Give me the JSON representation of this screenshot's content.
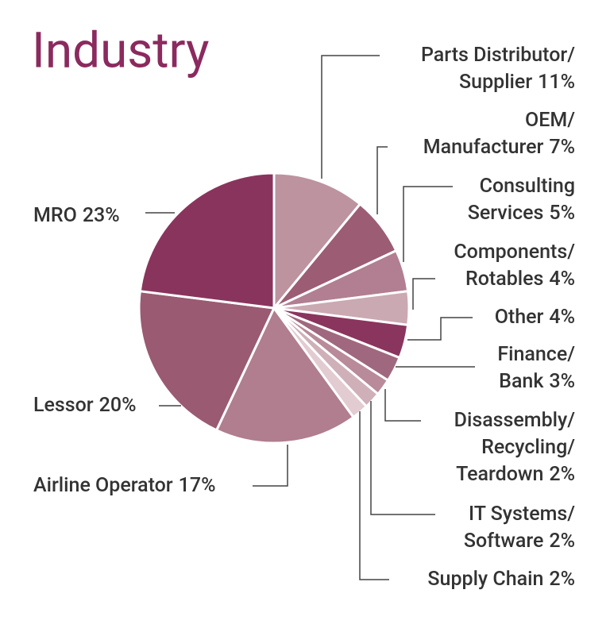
{
  "chart_data": {
    "type": "pie",
    "title": "Industry",
    "categories": [
      [
        "Parts Distributor/",
        "Supplier"
      ],
      [
        "OEM/",
        "Manufacturer"
      ],
      [
        "Consulting",
        "Services"
      ],
      [
        "Components/",
        "Rotables"
      ],
      [
        "Other"
      ],
      [
        "Finance/",
        "Bank"
      ],
      [
        "Disassembly/",
        "Recycling/",
        "Teardown"
      ],
      [
        "IT Systems/",
        "Software"
      ],
      [
        "Supply Chain"
      ],
      [
        "Airline Operator"
      ],
      [
        "Lessor"
      ],
      [
        "MRO"
      ]
    ],
    "values": [
      11,
      7,
      5,
      4,
      4,
      3,
      2,
      2,
      2,
      17,
      20,
      23
    ],
    "value_labels": [
      "11%",
      "7%",
      "5%",
      "4%",
      "4%",
      "3%",
      "2%",
      "2%",
      "2%",
      "17%",
      "20%",
      "23%"
    ],
    "colors": [
      "#bc939f",
      "#9c5c74",
      "#b17f91",
      "#cba9b2",
      "#8a355e",
      "#a0687e",
      "#b88a9a",
      "#cfb0b9",
      "#e2cbd1",
      "#b07e8e",
      "#9a5a72",
      "#89345d"
    ]
  }
}
